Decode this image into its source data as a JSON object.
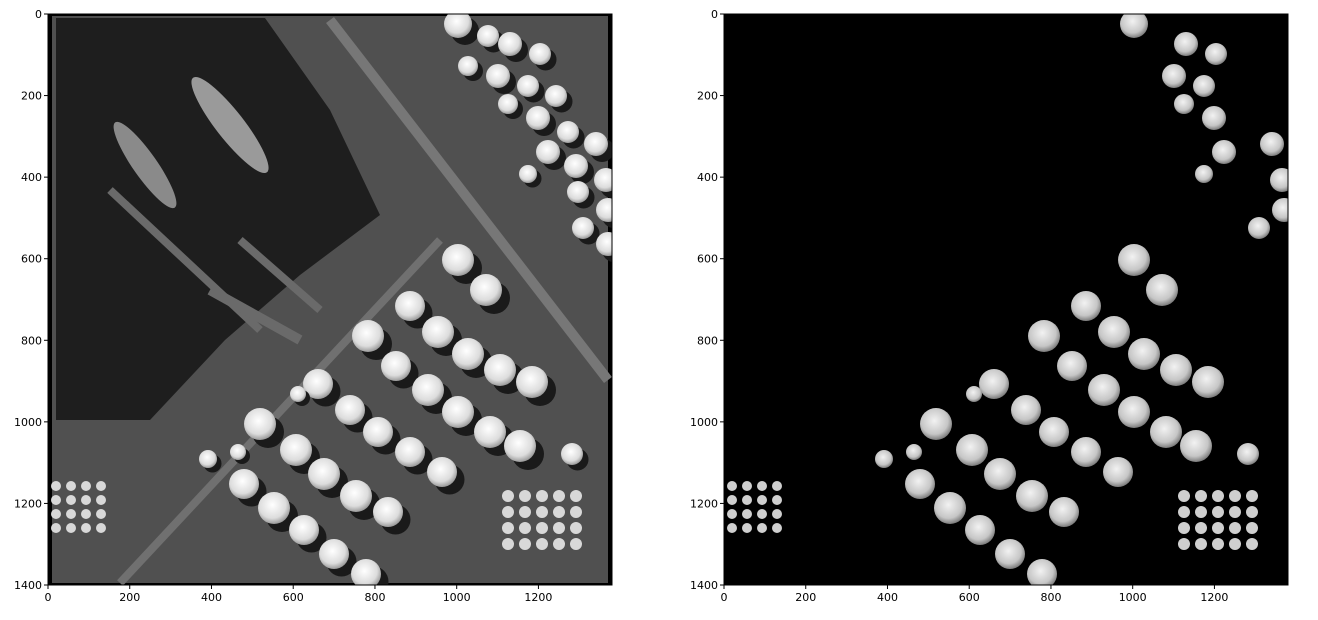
{
  "panels": [
    {
      "name": "left",
      "x_ticks": [
        "0",
        "200",
        "400",
        "600",
        "800",
        "1000",
        "1200"
      ],
      "y_ticks": [
        "0",
        "200",
        "400",
        "600",
        "800",
        "1000",
        "1200",
        "1400"
      ]
    },
    {
      "name": "right",
      "x_ticks": [
        "0",
        "200",
        "400",
        "600",
        "800",
        "1000",
        "1200"
      ],
      "y_ticks": [
        "0",
        "200",
        "400",
        "600",
        "800",
        "1000",
        "1200",
        "1400"
      ]
    }
  ],
  "colors": {
    "water": "#1e1e1e",
    "land": "#5a5a5a",
    "tank": "#e6e6e6",
    "mask_bg": "#000000"
  }
}
